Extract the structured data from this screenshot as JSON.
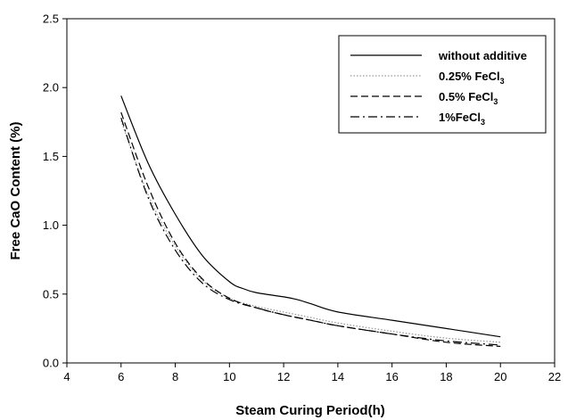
{
  "chart_data": {
    "type": "line",
    "xlabel": "Steam Curing Period(h)",
    "ylabel": "Free CaO Content (%)",
    "xlim": [
      4,
      22
    ],
    "ylim": [
      0.0,
      2.5
    ],
    "xticks": [
      "4",
      "6",
      "8",
      "10",
      "12",
      "14",
      "16",
      "18",
      "20",
      "22"
    ],
    "yticks": [
      "0.0",
      "0.5",
      "1.0",
      "1.5",
      "2.0",
      "2.5"
    ],
    "grid": false,
    "legend_position": "top-right",
    "series": [
      {
        "name": "without additive",
        "name_main": "without additive",
        "name_sub": "",
        "style": "solid",
        "color": "#000000",
        "x": [
          6,
          7,
          8,
          9,
          10,
          10.5,
          11,
          12,
          12.5,
          13,
          14,
          16,
          18,
          20
        ],
        "y": [
          1.94,
          1.45,
          1.08,
          0.78,
          0.59,
          0.54,
          0.51,
          0.48,
          0.46,
          0.43,
          0.37,
          0.31,
          0.25,
          0.19
        ]
      },
      {
        "name": "0.25% FeCl3",
        "name_main": "0.25% FeCl",
        "name_sub": "3",
        "style": "dotted",
        "color": "#9a9a9a",
        "x": [
          6,
          7,
          8,
          9,
          10,
          11,
          12,
          13,
          14,
          16,
          18,
          20
        ],
        "y": [
          1.76,
          1.22,
          0.85,
          0.6,
          0.47,
          0.41,
          0.37,
          0.33,
          0.29,
          0.23,
          0.18,
          0.15
        ]
      },
      {
        "name": "0.5% FeCl3",
        "name_main": "0.5% FeCl",
        "name_sub": "3",
        "style": "dashed",
        "color": "#000000",
        "x": [
          6,
          7,
          8,
          9,
          10,
          11,
          12,
          13,
          14,
          16,
          18,
          20
        ],
        "y": [
          1.82,
          1.28,
          0.87,
          0.61,
          0.47,
          0.4,
          0.35,
          0.31,
          0.27,
          0.21,
          0.15,
          0.12
        ]
      },
      {
        "name": "1%FeCl3",
        "name_main": "1%FeCl",
        "name_sub": "3",
        "style": "dashdot",
        "color": "#000000",
        "x": [
          6,
          7,
          8,
          9,
          10,
          11,
          12,
          13,
          14,
          16,
          18,
          20
        ],
        "y": [
          1.78,
          1.2,
          0.82,
          0.58,
          0.46,
          0.4,
          0.35,
          0.31,
          0.27,
          0.21,
          0.16,
          0.13
        ]
      }
    ]
  }
}
